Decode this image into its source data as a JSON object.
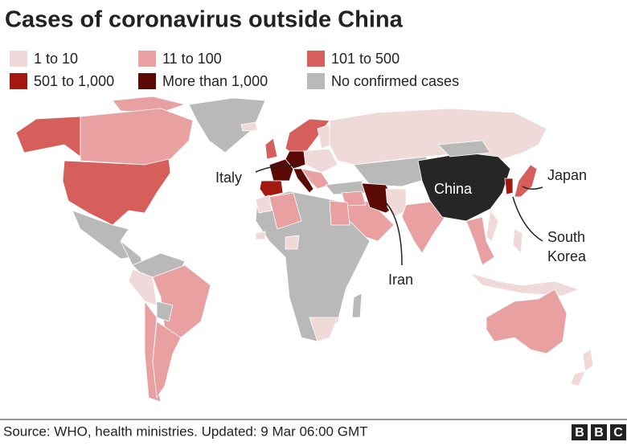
{
  "title": "Cases of coronavirus outside China",
  "legend": [
    {
      "label": "1 to 10",
      "color": "#f0d9d9"
    },
    {
      "label": "11 to 100",
      "color": "#e8a0a0"
    },
    {
      "label": "101 to 500",
      "color": "#d65f5c"
    },
    {
      "label": "501 to 1,000",
      "color": "#a3180f"
    },
    {
      "label": "More than 1,000",
      "color": "#5a0905"
    },
    {
      "label": "No confirmed cases",
      "color": "#b9b9b9"
    }
  ],
  "annotations": {
    "italy": "Italy",
    "china": "China",
    "japan": "Japan",
    "south_korea": [
      "South",
      "Korea"
    ],
    "iran": "Iran"
  },
  "source": "Source: WHO, health ministries. Updated: 9 Mar 06:00 GMT",
  "logo": [
    "B",
    "B",
    "C"
  ]
}
